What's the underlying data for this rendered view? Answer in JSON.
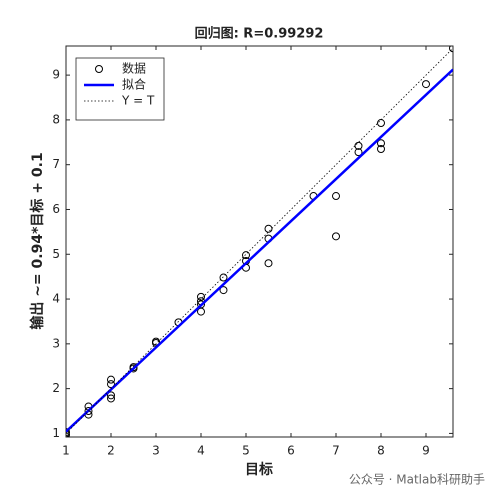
{
  "chart_data": {
    "type": "scatter",
    "title": "回归图: R=0.99292",
    "xlabel": "目标",
    "ylabel": "输出 ~= 0.94*目标 + 0.1",
    "watermark": "公众号 · Matlab科研助手",
    "xlim": [
      1,
      9.6
    ],
    "ylim": [
      0.92,
      9.65
    ],
    "xticks": [
      1,
      2,
      3,
      4,
      5,
      6,
      7,
      8,
      9
    ],
    "yticks": [
      1,
      2,
      3,
      4,
      5,
      6,
      7,
      8,
      9
    ],
    "grid": false,
    "legend": "northwest",
    "series": [
      {
        "name": "数据",
        "color": "#000000",
        "style": "circle",
        "x": [
          1,
          1,
          1,
          1.5,
          1.5,
          1.5,
          2,
          2,
          2,
          2,
          2.5,
          2.5,
          3,
          3,
          3.5,
          4,
          4,
          4,
          4,
          4.5,
          4.5,
          5,
          5,
          5,
          5.5,
          5.5,
          5.5,
          6.5,
          7,
          7,
          7.5,
          7.5,
          8,
          8,
          8,
          9,
          9.6
        ],
        "values": [
          0.97,
          1.0,
          1.03,
          1.6,
          1.5,
          1.42,
          2.2,
          2.1,
          1.85,
          1.78,
          2.48,
          2.45,
          3.05,
          3.02,
          3.48,
          4.05,
          3.95,
          3.88,
          3.72,
          4.48,
          4.2,
          4.98,
          4.85,
          4.7,
          5.57,
          5.35,
          4.8,
          6.3,
          6.3,
          5.4,
          7.42,
          7.28,
          7.93,
          7.48,
          7.35,
          8.8,
          9.6
        ]
      },
      {
        "name": "拟合",
        "color": "#0000ff",
        "style": "solid",
        "x": [
          1,
          9.6
        ],
        "values": [
          1.04,
          9.124
        ]
      },
      {
        "name": "Y = T",
        "color": "#000000",
        "style": "dotted",
        "x": [
          1,
          9.6
        ],
        "values": [
          1,
          9.6
        ]
      }
    ]
  }
}
